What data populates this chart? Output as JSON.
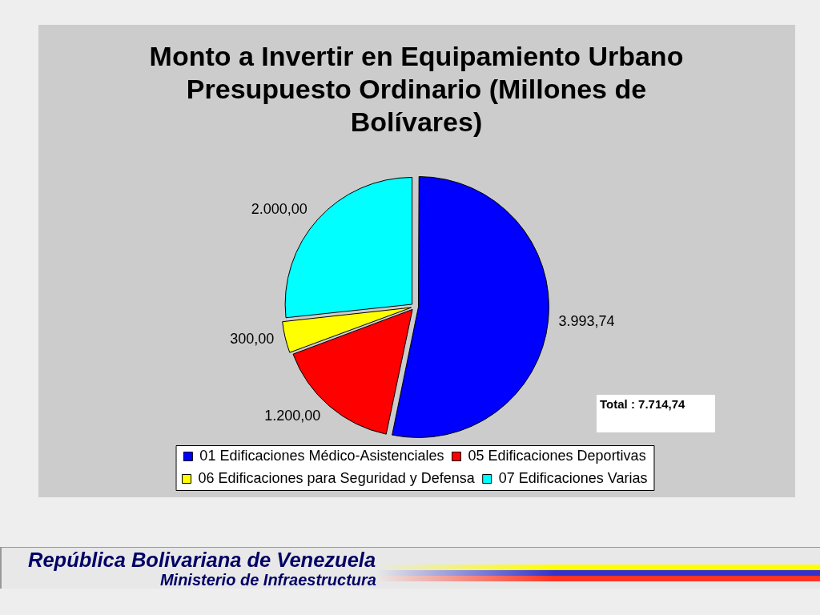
{
  "chart_data": {
    "type": "pie",
    "title": "Monto a Invertir en Equipamiento Urbano Presupuesto Ordinario (Millones de Bolívares)",
    "categories": [
      "01 Edificaciones Médico-Asistenciales",
      "05 Edificaciones Deportivas",
      "06 Edificaciones para Seguridad y Defensa",
      "07 Edificaciones Varias"
    ],
    "values": [
      3993.74,
      1200,
      300,
      2000
    ],
    "colors": [
      "#0000ff",
      "#ff0000",
      "#ffff00",
      "#00ffff"
    ],
    "value_labels": [
      "3.993,74",
      "1.200,00",
      "300,00",
      "2.000,00"
    ],
    "legend": "bottom",
    "annotations": [
      "Total : 7.714,74",
      "República Bolivariana de Venezuela",
      "Ministerio de Infraestructura"
    ]
  }
}
